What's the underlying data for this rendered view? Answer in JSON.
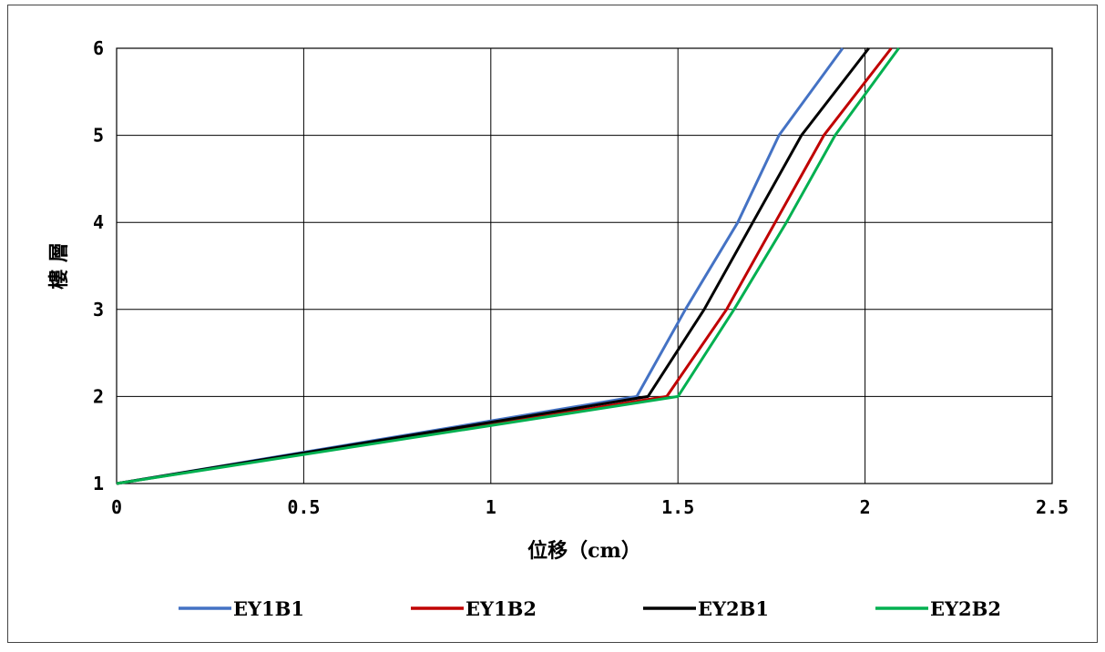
{
  "chart_data": {
    "type": "line",
    "xlabel": "位移（cm）",
    "ylabel": "樓 層",
    "xlim": [
      0,
      2.5
    ],
    "ylim": [
      1,
      6
    ],
    "x_ticks": [
      "0",
      "0.5",
      "1",
      "1.5",
      "2",
      "2.5"
    ],
    "y_ticks": [
      "1",
      "2",
      "3",
      "4",
      "5",
      "6"
    ],
    "x_tick_values": [
      0,
      0.5,
      1,
      1.5,
      2,
      2.5
    ],
    "y_tick_values": [
      1,
      2,
      3,
      4,
      5,
      6
    ],
    "grid": true,
    "legend_position": "bottom",
    "series": [
      {
        "name": "EY1B1",
        "color": "#4472C4",
        "x": [
          0,
          1.39,
          1.52,
          1.66,
          1.77,
          1.94
        ],
        "y": [
          1,
          2,
          3,
          4,
          5,
          6
        ]
      },
      {
        "name": "EY1B2",
        "color": "#C00000",
        "x": [
          0,
          1.47,
          1.63,
          1.76,
          1.89,
          2.07
        ],
        "y": [
          1,
          2,
          3,
          4,
          5,
          6
        ]
      },
      {
        "name": "EY2B1",
        "color": "#000000",
        "x": [
          0,
          1.42,
          1.57,
          1.7,
          1.83,
          2.01
        ],
        "y": [
          1,
          2,
          3,
          4,
          5,
          6
        ]
      },
      {
        "name": "EY2B2",
        "color": "#00B050",
        "x": [
          0,
          1.5,
          1.65,
          1.79,
          1.92,
          2.09
        ],
        "y": [
          1,
          2,
          3,
          4,
          5,
          6
        ]
      }
    ]
  }
}
